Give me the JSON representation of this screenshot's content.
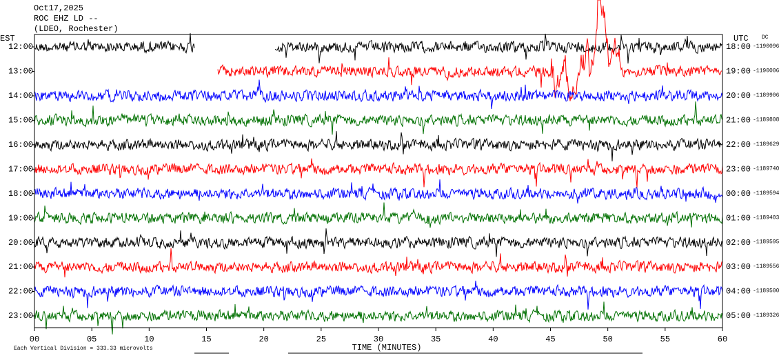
{
  "chart_data": {
    "type": "helicorder",
    "title": [
      "Oct17,2025",
      "ROC EHZ LD --",
      "(LDEO, Rochester)"
    ],
    "left_axis_label": "EST",
    "right_axis_label": "UTC",
    "offset_label": "DC",
    "rows_left": [
      "12:00",
      "13:00",
      "14:00",
      "15:00",
      "16:00",
      "17:00",
      "18:00",
      "19:00",
      "20:00",
      "21:00",
      "22:00",
      "23:00"
    ],
    "rows_right": [
      "18:00",
      "19:00",
      "20:00",
      "21:00",
      "22:00",
      "23:00",
      "00:00",
      "01:00",
      "02:00",
      "03:00",
      "04:00",
      "05:00"
    ],
    "offsets": [
      -1190096,
      -1190006,
      -1189906,
      -1189808,
      -1189629,
      -1189740,
      -1189594,
      -1189403,
      -1189595,
      -1189556,
      -1189500,
      -1189326
    ],
    "colors": [
      "#000000",
      "#ff0000",
      "#0000ff",
      "#007000"
    ],
    "xlabel": "TIME (MINUTES)",
    "xlim": [
      0,
      60
    ],
    "xticks": [
      {
        "value": 0,
        "label": "00"
      },
      {
        "value": 5,
        "label": "05"
      },
      10,
      15,
      20,
      25,
      30,
      35,
      40,
      45,
      50,
      55,
      60
    ],
    "scale_note": "Each Vertical Division =  333.33 microvolts"
  }
}
